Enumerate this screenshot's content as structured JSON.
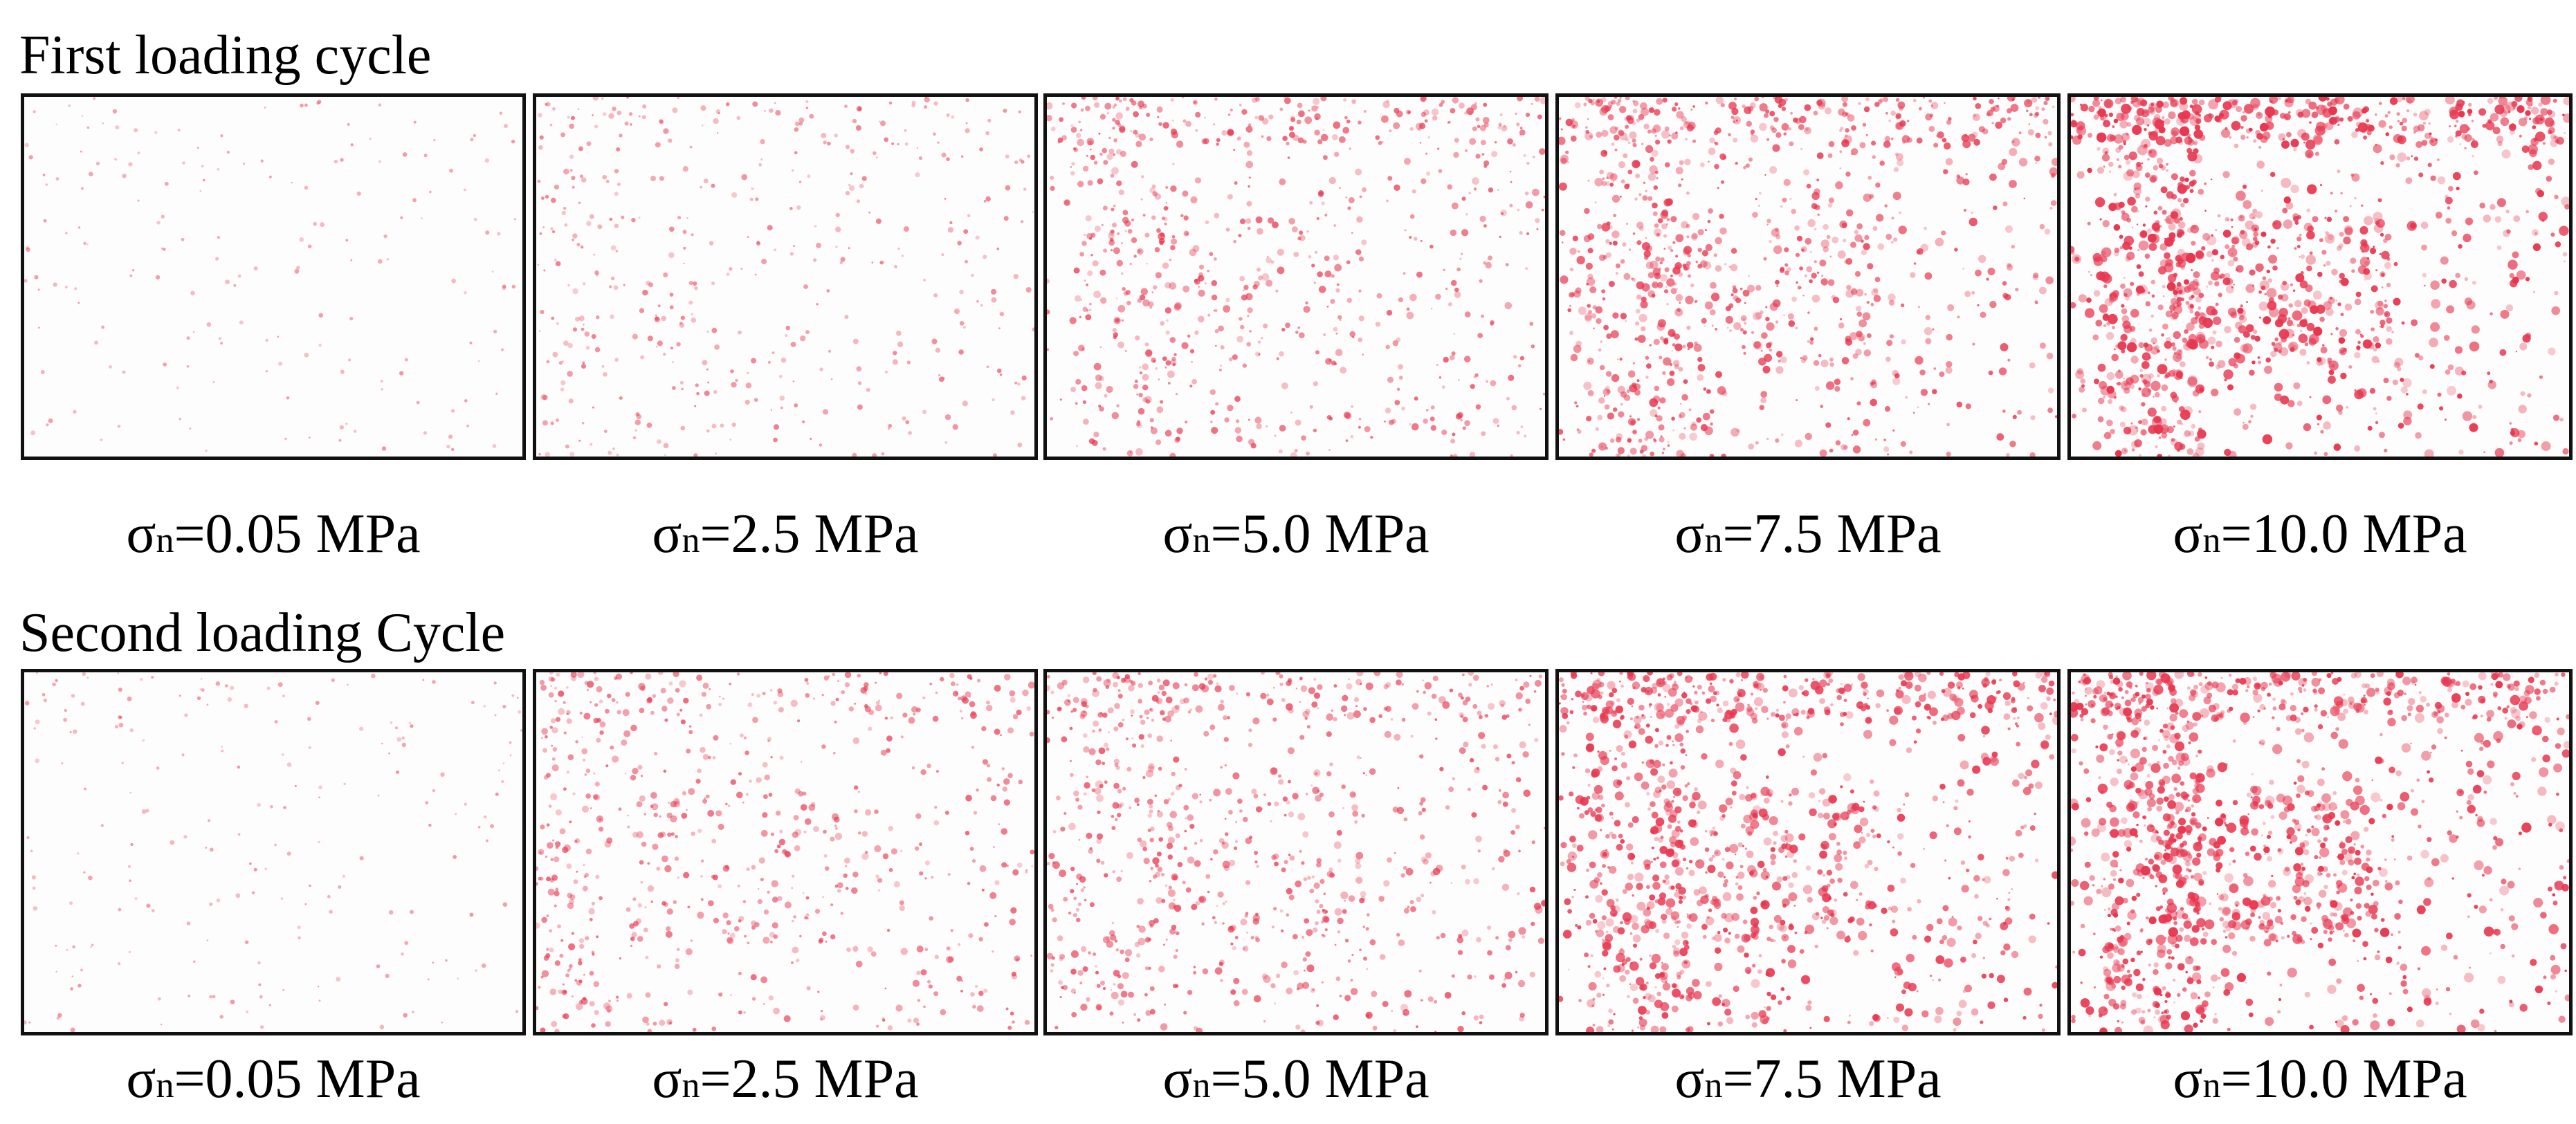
{
  "rows": [
    {
      "title": "First loading cycle",
      "panels": [
        {
          "sigma_symbol": "σ",
          "subscript": "n",
          "label_text": "=0.05 MPa",
          "density": 0.04,
          "color": "#e8364f"
        },
        {
          "sigma_symbol": "σ",
          "subscript": "n",
          "label_text": "=2.5 MPa",
          "density": 0.22,
          "color": "#e8364f"
        },
        {
          "sigma_symbol": "σ",
          "subscript": "n",
          "label_text": "=5.0 MPa",
          "density": 0.45,
          "color": "#e8364f"
        },
        {
          "sigma_symbol": "σ",
          "subscript": "n",
          "label_text": "=7.5 MPa",
          "density": 0.62,
          "color": "#e8364f"
        },
        {
          "sigma_symbol": "σ",
          "subscript": "n",
          "label_text": "=10.0 MPa",
          "density": 0.85,
          "color": "#e8364f"
        }
      ]
    },
    {
      "title": "Second loading Cycle",
      "panels": [
        {
          "sigma_symbol": "σ",
          "subscript": "n",
          "label_text": "=0.05 MPa",
          "density": 0.06,
          "color": "#e8364f"
        },
        {
          "sigma_symbol": "σ",
          "subscript": "n",
          "label_text": "=2.5 MPa",
          "density": 0.4,
          "color": "#e8364f"
        },
        {
          "sigma_symbol": "σ",
          "subscript": "n",
          "label_text": "=5.0 MPa",
          "density": 0.48,
          "color": "#e8364f"
        },
        {
          "sigma_symbol": "σ",
          "subscript": "n",
          "label_text": "=7.5 MPa",
          "density": 0.72,
          "color": "#e8364f"
        },
        {
          "sigma_symbol": "σ",
          "subscript": "n",
          "label_text": "=10.0 MPa",
          "density": 0.82,
          "color": "#e8364f"
        }
      ]
    }
  ]
}
